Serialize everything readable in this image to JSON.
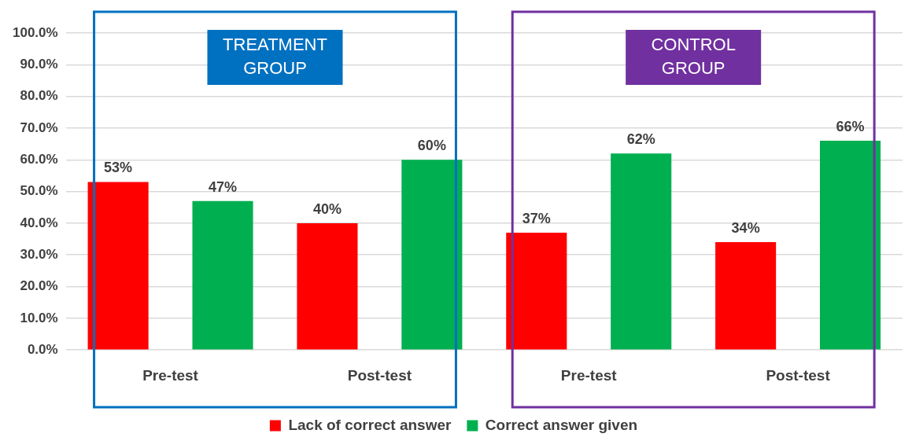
{
  "chart_data": {
    "type": "bar",
    "categories": [
      "Pre-test",
      "Post-test",
      "Pre-test",
      "Post-test"
    ],
    "series": [
      {
        "name": "Lack of correct answer",
        "color": "#ff0000",
        "values": [
          53,
          40,
          37,
          34
        ],
        "value_labels": [
          "53%",
          "40%",
          "37%",
          "34%"
        ]
      },
      {
        "name": "Correct answer given",
        "color": "#00b050",
        "values": [
          47,
          60,
          62,
          66
        ],
        "value_labels": [
          "47%",
          "60%",
          "62%",
          "66%"
        ]
      }
    ],
    "ylim": [
      0,
      100
    ],
    "yticks": [
      {
        "value": 0,
        "label": "0.0%"
      },
      {
        "value": 10,
        "label": "10.0%"
      },
      {
        "value": 20,
        "label": "20.0%"
      },
      {
        "value": 30,
        "label": "30.0%"
      },
      {
        "value": 40,
        "label": "40.0%"
      },
      {
        "value": 50,
        "label": "50.0%"
      },
      {
        "value": 60,
        "label": "60.0%"
      },
      {
        "value": 70,
        "label": "70.0%"
      },
      {
        "value": 80,
        "label": "80.0%"
      },
      {
        "value": 90,
        "label": "90.0%"
      },
      {
        "value": 100,
        "label": "100.0%"
      }
    ],
    "grid": "y",
    "legend": "bottom",
    "annotations": [
      "TREATMENT GROUP",
      "CONTROL GROUP"
    ]
  }
}
